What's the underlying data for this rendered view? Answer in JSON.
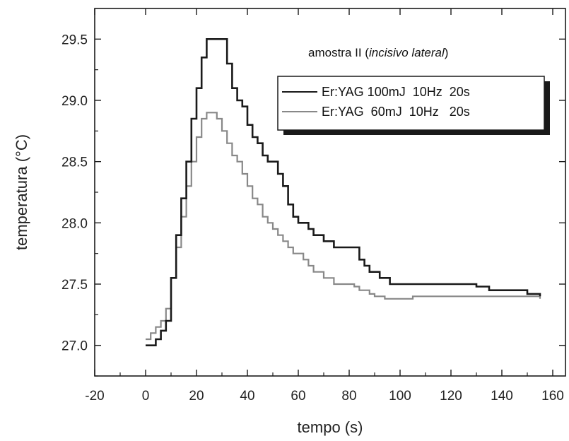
{
  "chart_data": {
    "type": "line",
    "title": "",
    "annotation": {
      "prefix": "amostra II (",
      "italic": "incisivo lateral",
      "suffix": ")"
    },
    "xlabel": "tempo (s)",
    "ylabel": "temperatura (°C)",
    "xlim": [
      -20,
      165
    ],
    "ylim": [
      26.75,
      29.75
    ],
    "xticks": [
      -20,
      0,
      20,
      40,
      60,
      80,
      100,
      120,
      140,
      160
    ],
    "xtick_labels": [
      "-20",
      "0",
      "20",
      "40",
      "60",
      "80",
      "100",
      "120",
      "140",
      "160"
    ],
    "yticks": [
      27.0,
      27.5,
      28.0,
      28.5,
      29.0,
      29.5
    ],
    "ytick_labels": [
      "27.0",
      "27.5",
      "28.0",
      "28.5",
      "29.0",
      "29.5"
    ],
    "grid": false,
    "legend_position": "top-right",
    "series": [
      {
        "name": "Er:YAG 100mJ  10Hz  20s",
        "color": "#1a1a1a",
        "x": [
          0,
          2,
          4,
          6,
          8,
          10,
          12,
          14,
          16,
          18,
          20,
          22,
          24,
          26,
          28,
          30,
          32,
          34,
          36,
          38,
          40,
          42,
          44,
          46,
          48,
          50,
          52,
          54,
          56,
          58,
          60,
          62,
          64,
          66,
          68,
          70,
          72,
          74,
          76,
          78,
          80,
          82,
          84,
          86,
          88,
          90,
          92,
          94,
          96,
          98,
          100,
          105,
          110,
          115,
          120,
          125,
          130,
          135,
          140,
          145,
          150,
          155
        ],
        "values": [
          27.0,
          27.0,
          27.05,
          27.12,
          27.2,
          27.55,
          27.9,
          28.2,
          28.5,
          28.85,
          29.1,
          29.35,
          29.5,
          29.5,
          29.5,
          29.5,
          29.3,
          29.1,
          29.0,
          28.95,
          28.8,
          28.7,
          28.65,
          28.55,
          28.5,
          28.5,
          28.4,
          28.3,
          28.15,
          28.05,
          28.0,
          28.0,
          27.95,
          27.9,
          27.9,
          27.85,
          27.85,
          27.8,
          27.8,
          27.8,
          27.8,
          27.8,
          27.7,
          27.65,
          27.6,
          27.6,
          27.55,
          27.55,
          27.5,
          27.5,
          27.5,
          27.5,
          27.5,
          27.5,
          27.5,
          27.5,
          27.48,
          27.45,
          27.45,
          27.45,
          27.42,
          27.4
        ]
      },
      {
        "name": "Er:YAG  60mJ  10Hz   20s",
        "color": "#888888",
        "x": [
          0,
          2,
          4,
          6,
          8,
          10,
          12,
          14,
          16,
          18,
          20,
          22,
          24,
          26,
          28,
          30,
          32,
          34,
          36,
          38,
          40,
          42,
          44,
          46,
          48,
          50,
          52,
          54,
          56,
          58,
          60,
          62,
          64,
          66,
          68,
          70,
          72,
          74,
          76,
          78,
          80,
          82,
          84,
          86,
          88,
          90,
          92,
          94,
          96,
          98,
          100,
          105,
          110,
          115,
          120,
          125,
          130,
          135,
          140,
          145,
          150,
          155
        ],
        "values": [
          27.05,
          27.1,
          27.15,
          27.2,
          27.3,
          27.55,
          27.8,
          28.05,
          28.3,
          28.5,
          28.7,
          28.85,
          28.9,
          28.9,
          28.85,
          28.75,
          28.65,
          28.55,
          28.5,
          28.4,
          28.3,
          28.2,
          28.15,
          28.05,
          28.0,
          27.95,
          27.9,
          27.85,
          27.8,
          27.75,
          27.75,
          27.7,
          27.65,
          27.6,
          27.6,
          27.55,
          27.55,
          27.5,
          27.5,
          27.5,
          27.5,
          27.48,
          27.45,
          27.45,
          27.42,
          27.4,
          27.4,
          27.38,
          27.38,
          27.38,
          27.38,
          27.4,
          27.4,
          27.4,
          27.4,
          27.4,
          27.4,
          27.4,
          27.4,
          27.4,
          27.4,
          27.38
        ]
      }
    ]
  }
}
